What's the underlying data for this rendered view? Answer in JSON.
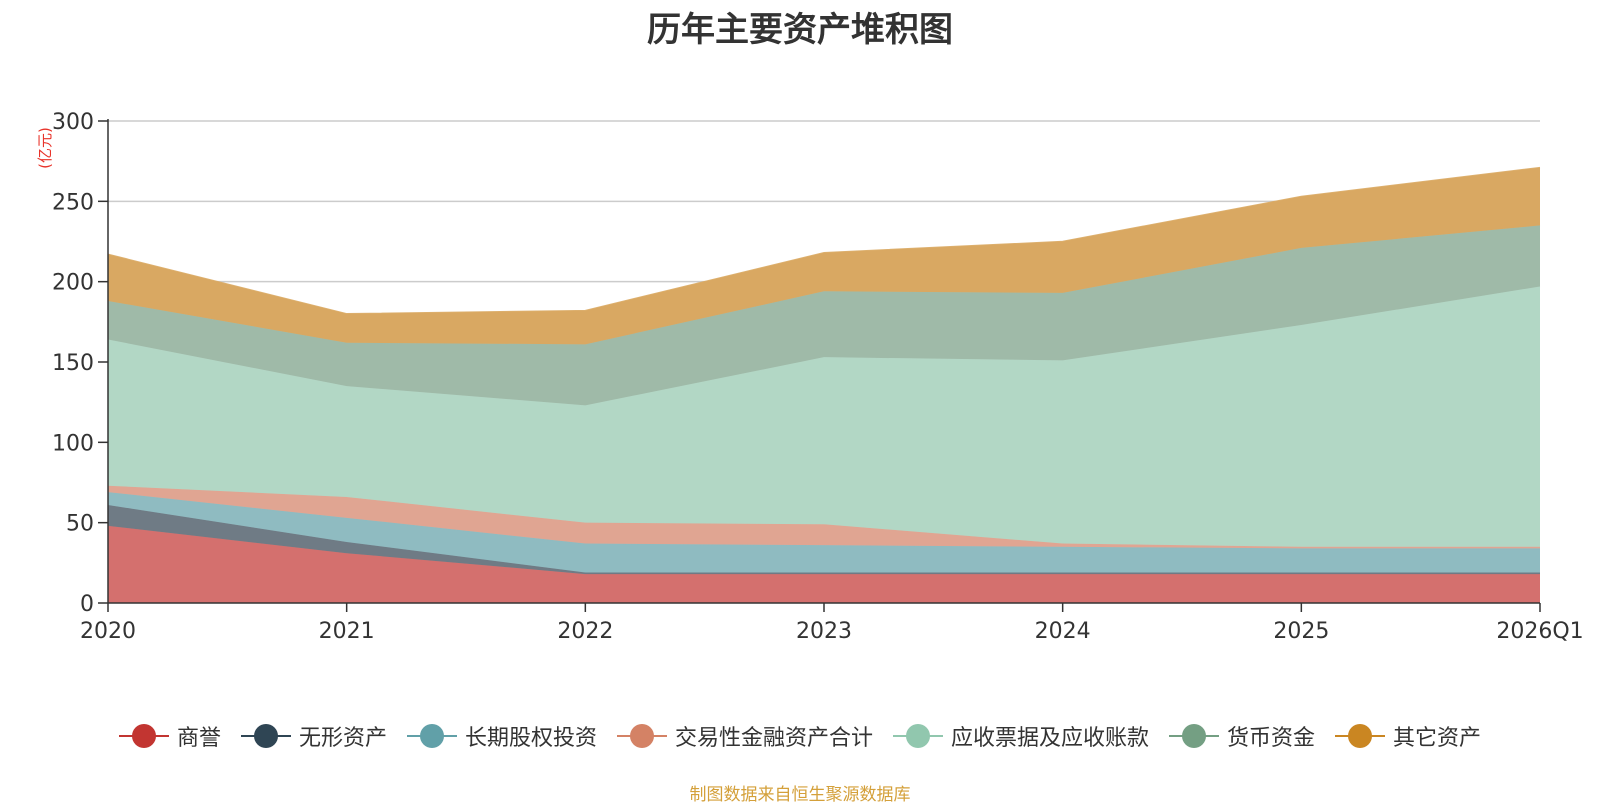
{
  "chart_data": {
    "type": "area",
    "stacked": true,
    "title": "历年主要资产堆积图",
    "ylabel": "(亿元)",
    "xlabel": "",
    "ylim": [
      0,
      300
    ],
    "yticks": [
      0,
      50,
      100,
      150,
      200,
      250,
      300
    ],
    "categories": [
      "2020",
      "2021",
      "2022",
      "2023",
      "2024",
      "2025",
      "2026Q1"
    ],
    "series": [
      {
        "name": "商誉",
        "color": "#c23531",
        "fill": "#d4706e",
        "values": [
          48,
          31,
          18,
          18,
          18,
          18,
          18
        ]
      },
      {
        "name": "无形资产",
        "color": "#2f4554",
        "fill": "#6f7b85",
        "values": [
          13,
          7,
          1,
          1,
          1,
          1,
          1
        ]
      },
      {
        "name": "长期股权投资",
        "color": "#61a0a8",
        "fill": "#8fbbc1",
        "values": [
          8,
          15,
          18,
          17,
          16,
          15,
          15
        ]
      },
      {
        "name": "交易性金融资产合计",
        "color": "#d48265",
        "fill": "#e0a592",
        "values": [
          4,
          13,
          13,
          13,
          2,
          1,
          1
        ]
      },
      {
        "name": "应收票据及应收账款",
        "color": "#91c7ae",
        "fill": "#b2d7c5",
        "values": [
          91,
          69,
          73,
          104,
          114,
          138,
          162
        ]
      },
      {
        "name": "货币资金",
        "color": "#749f83",
        "fill": "#9fbaa8",
        "values": [
          24,
          27,
          38,
          41,
          42,
          48,
          38
        ]
      },
      {
        "name": "其它资产",
        "color": "#ca8622",
        "fill": "#d9a862",
        "values": [
          29,
          18,
          21,
          24,
          32,
          32,
          36
        ]
      }
    ]
  },
  "source_note": "制图数据来自恒生聚源数据库"
}
